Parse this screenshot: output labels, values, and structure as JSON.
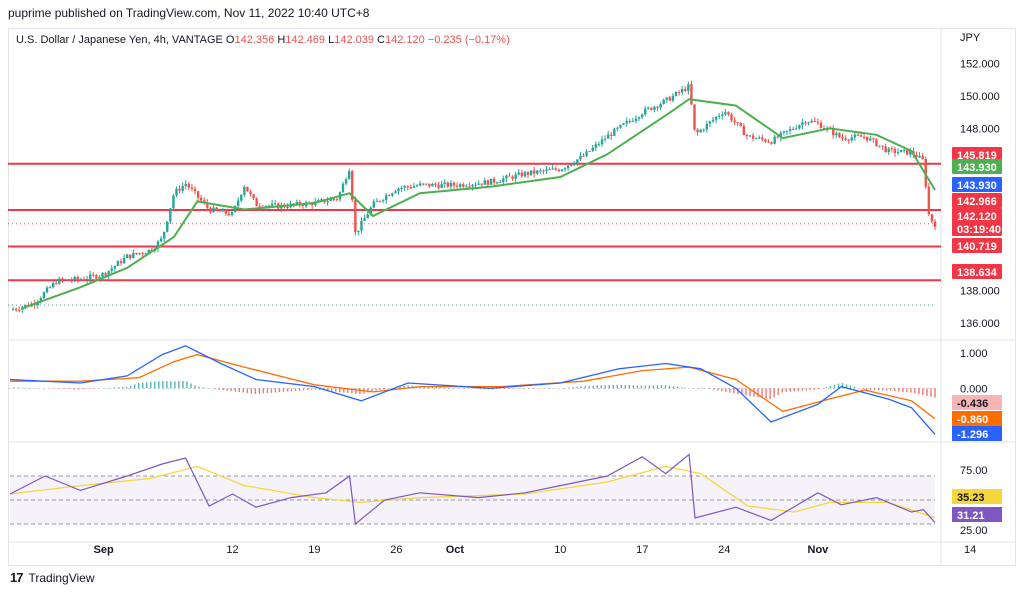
{
  "header": {
    "publisher": "puprime published on TradingView.com, Nov 11, 2022 10:40 UTC+8"
  },
  "footer": {
    "brand": "TradingView",
    "logo_glyph": "17"
  },
  "colors": {
    "up": "#26a69a",
    "down": "#ef5350",
    "ma": "#4caf50",
    "hline": "#f23645",
    "macd": "#2962ff",
    "signal": "#ff6d00",
    "rsi": "#7e57c2",
    "rsi_ma": "#f5d63d"
  },
  "chart_data": [
    {
      "type": "candlestick",
      "title": "U.S. Dollar / Japanese Yen, 4h, VANTAGE",
      "ohlc_legend": {
        "o_label": "O",
        "o": "142.356",
        "h_label": "H",
        "h": "142.469",
        "l_label": "L",
        "l": "142.039",
        "c_label": "C",
        "c": "142.120",
        "change": "−0.235 (−0.17%)"
      },
      "currency": "JPY",
      "ylim": [
        135.2,
        153.2
      ],
      "y_ticks": [
        "152.000",
        "150.000",
        "148.000",
        "138.000",
        "136.000"
      ],
      "x_ticks": [
        "Sep",
        "12",
        "19",
        "26",
        "Oct",
        "10",
        "17",
        "24",
        "Nov",
        "14"
      ],
      "x_tick_dates": [
        "2022-09-01",
        "2022-09-12",
        "2022-09-19",
        "2022-09-26",
        "2022-10-01",
        "2022-10-10",
        "2022-10-17",
        "2022-10-24",
        "2022-11-01",
        "2022-11-14"
      ],
      "date_range": [
        "2022-08-24",
        "2022-11-11"
      ],
      "close_path": [
        [
          "2022-08-24",
          136.8
        ],
        [
          "2022-08-26",
          137.2
        ],
        [
          "2022-08-28",
          138.6
        ],
        [
          "2022-08-30",
          138.7
        ],
        [
          "2022-09-01",
          139.0
        ],
        [
          "2022-09-03",
          140.1
        ],
        [
          "2022-09-05",
          140.5
        ],
        [
          "2022-09-06",
          141.2
        ],
        [
          "2022-09-07",
          144.0
        ],
        [
          "2022-09-08",
          144.6
        ],
        [
          "2022-09-10",
          143.0
        ],
        [
          "2022-09-12",
          142.7
        ],
        [
          "2022-09-13",
          144.5
        ],
        [
          "2022-09-14",
          143.3
        ],
        [
          "2022-09-16",
          143.2
        ],
        [
          "2022-09-19",
          143.4
        ],
        [
          "2022-09-21",
          143.7
        ],
        [
          "2022-09-22",
          145.6
        ],
        [
          "2022-09-22 12:00",
          141.5
        ],
        [
          "2022-09-24",
          143.3
        ],
        [
          "2022-09-26",
          144.3
        ],
        [
          "2022-09-28",
          144.5
        ],
        [
          "2022-10-01",
          144.5
        ],
        [
          "2022-10-04",
          144.7
        ],
        [
          "2022-10-07",
          145.2
        ],
        [
          "2022-10-10",
          145.5
        ],
        [
          "2022-10-12",
          146.3
        ],
        [
          "2022-10-14",
          147.5
        ],
        [
          "2022-10-17",
          149.0
        ],
        [
          "2022-10-19",
          149.7
        ],
        [
          "2022-10-21",
          150.6
        ],
        [
          "2022-10-21 12:00",
          147.6
        ],
        [
          "2022-10-24",
          149.1
        ],
        [
          "2022-10-26",
          147.5
        ],
        [
          "2022-10-28",
          147.2
        ],
        [
          "2022-10-31",
          148.5
        ],
        [
          "2022-11-01",
          148.3
        ],
        [
          "2022-11-03",
          147.4
        ],
        [
          "2022-11-05",
          147.5
        ],
        [
          "2022-11-07",
          146.6
        ],
        [
          "2022-11-09",
          146.5
        ],
        [
          "2022-11-10",
          146.0
        ],
        [
          "2022-11-10 12:00",
          142.5
        ],
        [
          "2022-11-11",
          142.1
        ]
      ],
      "ma_path": [
        [
          "2022-08-25",
          136.9
        ],
        [
          "2022-08-30",
          138.2
        ],
        [
          "2022-09-03",
          139.4
        ],
        [
          "2022-09-07",
          141.3
        ],
        [
          "2022-09-09",
          143.5
        ],
        [
          "2022-09-13",
          143.0
        ],
        [
          "2022-09-19",
          143.4
        ],
        [
          "2022-09-22",
          144.0
        ],
        [
          "2022-09-24",
          142.6
        ],
        [
          "2022-09-28",
          144.0
        ],
        [
          "2022-10-04",
          144.4
        ],
        [
          "2022-10-10",
          145.0
        ],
        [
          "2022-10-14",
          146.4
        ],
        [
          "2022-10-19",
          148.8
        ],
        [
          "2022-10-21",
          149.8
        ],
        [
          "2022-10-25",
          149.4
        ],
        [
          "2022-10-29",
          147.4
        ],
        [
          "2022-11-02",
          148.0
        ],
        [
          "2022-11-06",
          147.6
        ],
        [
          "2022-11-09",
          146.6
        ],
        [
          "2022-11-11",
          144.2
        ]
      ],
      "horizontal_levels": [
        145.819,
        142.966,
        140.719,
        138.634
      ],
      "dotted_levels": [
        142.12,
        137.1
      ],
      "price_labels": [
        {
          "text": "145.819",
          "kind": "level"
        },
        {
          "text": "143.930",
          "kind": "ma-light"
        },
        {
          "text": "143.930",
          "kind": "ma-blue"
        },
        {
          "text": "142.966",
          "kind": "level"
        },
        {
          "text": "142.120",
          "kind": "last"
        },
        {
          "text": "03:19:40",
          "kind": "countdown"
        },
        {
          "text": "140.719",
          "kind": "level"
        },
        {
          "text": "138.634",
          "kind": "level"
        }
      ]
    },
    {
      "type": "line",
      "name": "MACD",
      "ylim": [
        -1.4,
        1.25
      ],
      "y_ticks": [
        "1.000",
        "0.000"
      ],
      "histogram_sign_path": [
        [
          "2022-08-24",
          1
        ],
        [
          "2022-09-05",
          1
        ],
        [
          "2022-09-12",
          -1
        ],
        [
          "2022-09-19",
          1
        ],
        [
          "2022-09-24",
          -1
        ],
        [
          "2022-09-28",
          1
        ],
        [
          "2022-10-12",
          1
        ],
        [
          "2022-10-19",
          1
        ],
        [
          "2022-10-23",
          -1
        ],
        [
          "2022-10-31",
          1
        ],
        [
          "2022-11-03",
          -1
        ],
        [
          "2022-11-11",
          -1
        ]
      ],
      "series": [
        {
          "name": "",
          "color": "#2962ff",
          "values": [
            [
              "2022-08-24",
              0.25
            ],
            [
              "2022-08-30",
              0.15
            ],
            [
              "2022-09-03",
              0.35
            ],
            [
              "2022-09-06",
              0.95
            ],
            [
              "2022-09-08",
              1.2
            ],
            [
              "2022-09-11",
              0.7
            ],
            [
              "2022-09-14",
              0.25
            ],
            [
              "2022-09-19",
              0.05
            ],
            [
              "2022-09-23",
              -0.35
            ],
            [
              "2022-09-27",
              0.15
            ],
            [
              "2022-10-04",
              0.0
            ],
            [
              "2022-10-10",
              0.15
            ],
            [
              "2022-10-15",
              0.55
            ],
            [
              "2022-10-19",
              0.7
            ],
            [
              "2022-10-22",
              0.55
            ],
            [
              "2022-10-25",
              0.0
            ],
            [
              "2022-10-28",
              -0.95
            ],
            [
              "2022-11-01",
              -0.45
            ],
            [
              "2022-11-03",
              0.05
            ],
            [
              "2022-11-07",
              -0.3
            ],
            [
              "2022-11-09",
              -0.55
            ],
            [
              "2022-11-11",
              -1.296
            ]
          ]
        },
        {
          "name": "",
          "color": "#ff6d00",
          "values": [
            [
              "2022-08-24",
              0.2
            ],
            [
              "2022-08-30",
              0.2
            ],
            [
              "2022-09-04",
              0.3
            ],
            [
              "2022-09-07",
              0.75
            ],
            [
              "2022-09-09",
              0.95
            ],
            [
              "2022-09-13",
              0.6
            ],
            [
              "2022-09-19",
              0.1
            ],
            [
              "2022-09-24",
              -0.1
            ],
            [
              "2022-09-28",
              0.05
            ],
            [
              "2022-10-05",
              0.05
            ],
            [
              "2022-10-12",
              0.2
            ],
            [
              "2022-10-17",
              0.5
            ],
            [
              "2022-10-21",
              0.6
            ],
            [
              "2022-10-25",
              0.25
            ],
            [
              "2022-10-29",
              -0.65
            ],
            [
              "2022-11-02",
              -0.3
            ],
            [
              "2022-11-05",
              -0.05
            ],
            [
              "2022-11-09",
              -0.35
            ],
            [
              "2022-11-11",
              -0.86
            ]
          ]
        }
      ],
      "value_labels": [
        {
          "text": "-0.436",
          "kind": "histogram"
        },
        {
          "text": "-0.860",
          "kind": "signal"
        },
        {
          "text": "-1.296",
          "kind": "macd"
        }
      ]
    },
    {
      "type": "line",
      "name": "RSI",
      "ylim": [
        20,
        95
      ],
      "y_ticks": [
        "75.00"
      ],
      "partial_tick": "25.00",
      "band": [
        30,
        70
      ],
      "midline": 50,
      "series": [
        {
          "name": "",
          "color": "#7e57c2",
          "values": [
            [
              "2022-08-24",
              55
            ],
            [
              "2022-08-27",
              70
            ],
            [
              "2022-08-30",
              58
            ],
            [
              "2022-09-03",
              70
            ],
            [
              "2022-09-06",
              80
            ],
            [
              "2022-09-08",
              85
            ],
            [
              "2022-09-10",
              45
            ],
            [
              "2022-09-12",
              55
            ],
            [
              "2022-09-14",
              44
            ],
            [
              "2022-09-17",
              52
            ],
            [
              "2022-09-20",
              56
            ],
            [
              "2022-09-22",
              70
            ],
            [
              "2022-09-22 12:00",
              30
            ],
            [
              "2022-09-25",
              50
            ],
            [
              "2022-09-28",
              56
            ],
            [
              "2022-10-03",
              52
            ],
            [
              "2022-10-07",
              56
            ],
            [
              "2022-10-10",
              62
            ],
            [
              "2022-10-14",
              70
            ],
            [
              "2022-10-17",
              86
            ],
            [
              "2022-10-19",
              72
            ],
            [
              "2022-10-21",
              88
            ],
            [
              "2022-10-21 12:00",
              35
            ],
            [
              "2022-10-25",
              44
            ],
            [
              "2022-10-28",
              33
            ],
            [
              "2022-11-01",
              56
            ],
            [
              "2022-11-03",
              46
            ],
            [
              "2022-11-06",
              52
            ],
            [
              "2022-11-09",
              40
            ],
            [
              "2022-11-10",
              42
            ],
            [
              "2022-11-11",
              31.21
            ]
          ]
        },
        {
          "name": "",
          "color": "#f5d63d",
          "values": [
            [
              "2022-08-24",
              55
            ],
            [
              "2022-08-30",
              62
            ],
            [
              "2022-09-05",
              68
            ],
            [
              "2022-09-09",
              78
            ],
            [
              "2022-09-13",
              62
            ],
            [
              "2022-09-19",
              52
            ],
            [
              "2022-09-23",
              48
            ],
            [
              "2022-09-28",
              52
            ],
            [
              "2022-10-07",
              55
            ],
            [
              "2022-10-14",
              65
            ],
            [
              "2022-10-19",
              78
            ],
            [
              "2022-10-22",
              72
            ],
            [
              "2022-10-26",
              45
            ],
            [
              "2022-10-30",
              40
            ],
            [
              "2022-11-02",
              48
            ],
            [
              "2022-11-07",
              48
            ],
            [
              "2022-11-11",
              35.23
            ]
          ]
        }
      ],
      "value_labels": [
        {
          "text": "35.23",
          "kind": "rsi-ma"
        },
        {
          "text": "31.21",
          "kind": "rsi"
        }
      ]
    }
  ]
}
